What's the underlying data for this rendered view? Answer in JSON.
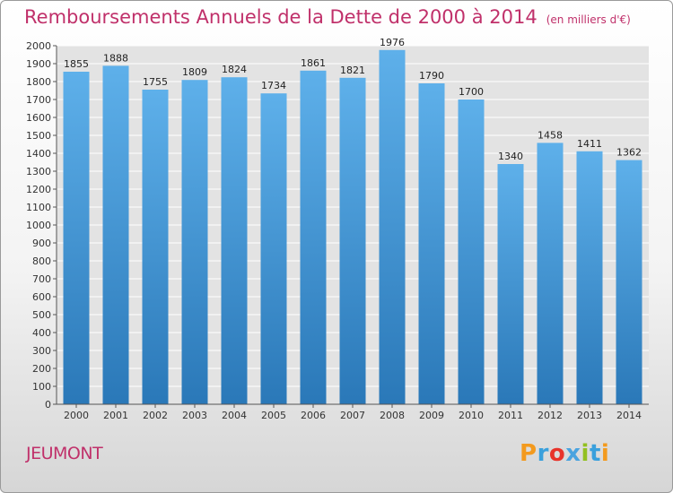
{
  "chart_data": {
    "type": "bar",
    "title": "Remboursements Annuels de la Dette de 2000 à 2014",
    "subtitle": "(en milliers d'€)",
    "categories": [
      "2000",
      "2001",
      "2002",
      "2003",
      "2004",
      "2005",
      "2006",
      "2007",
      "2008",
      "2009",
      "2010",
      "2011",
      "2012",
      "2013",
      "2014"
    ],
    "values": [
      1855,
      1888,
      1755,
      1809,
      1824,
      1734,
      1861,
      1821,
      1976,
      1790,
      1700,
      1340,
      1458,
      1411,
      1362
    ],
    "ylim": [
      0,
      2000
    ],
    "ytick_step": 100,
    "xlabel": "",
    "ylabel": "",
    "grid": true,
    "bar_color_top": "#5eb0ea",
    "bar_color_bottom": "#2a78b8"
  },
  "footer": {
    "city": "JEUMONT",
    "logo_text": "Proxiti",
    "logo_colors": [
      "#f39a1e",
      "#3aa0dc",
      "#e8332a",
      "#4aa3df",
      "#93c020",
      "#3aa0dc",
      "#f39a1e"
    ]
  }
}
